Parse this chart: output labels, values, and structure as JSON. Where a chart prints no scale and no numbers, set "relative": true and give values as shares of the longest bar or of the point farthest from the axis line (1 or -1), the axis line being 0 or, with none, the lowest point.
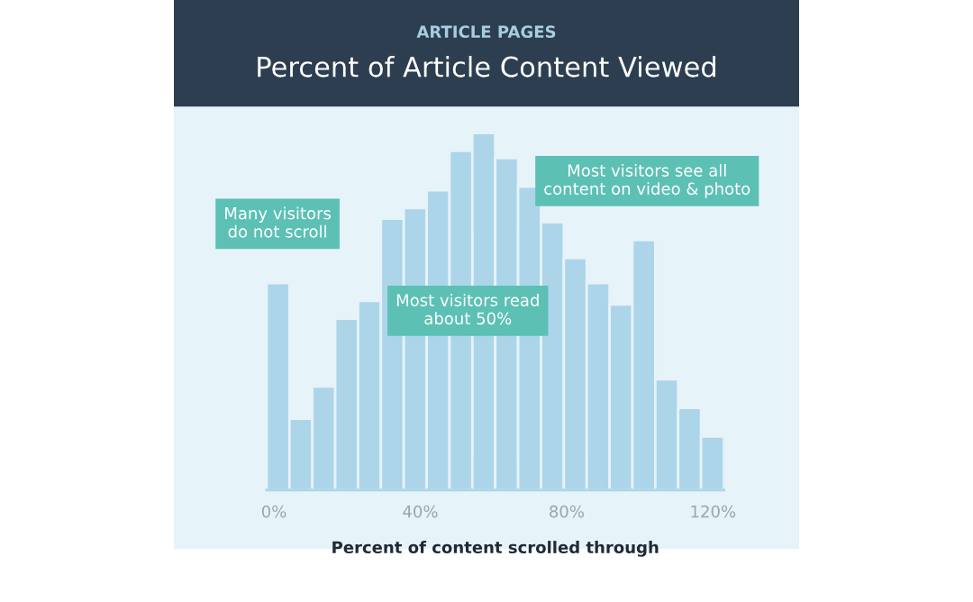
{
  "chart_data": {
    "type": "bar",
    "subtitle": "ARTICLE PAGES",
    "title": "Percent of Article Content Viewed",
    "xlabel": "Percent of content scrolled through",
    "relative": true,
    "color": "#acd5ea",
    "x": [
      1.125,
      7.375,
      13.625,
      19.875,
      26.125,
      32.375,
      38.625,
      44.875,
      51.125,
      57.375,
      63.625,
      69.875,
      76.125,
      82.375,
      88.625,
      94.875,
      101.125,
      107.375,
      113.625,
      119.875
    ],
    "values": [
      0.58,
      0.2,
      0.29,
      0.48,
      0.53,
      0.76,
      0.79,
      0.84,
      0.95,
      1,
      0.93,
      0.85,
      0.75,
      0.65,
      0.58,
      0.52,
      0.7,
      0.31,
      0.23,
      0.15
    ],
    "xlim": [
      -2,
      123
    ],
    "xticks": [
      {
        "value": 0,
        "label": "0%"
      },
      {
        "value": 40,
        "label": "40%"
      },
      {
        "value": 80,
        "label": "80%"
      },
      {
        "value": 120,
        "label": "120%"
      }
    ],
    "annotations": [
      {
        "text": "Many visitors\ndo not scroll",
        "x": 1,
        "y": 0.6
      },
      {
        "text": "Most visitors read\nabout 50%",
        "x": 53,
        "y": 0.62
      },
      {
        "text": "Most visitors see all\ncontent on video & photo",
        "x": 102,
        "y": 0.72
      }
    ],
    "grid": false,
    "legend": false
  }
}
